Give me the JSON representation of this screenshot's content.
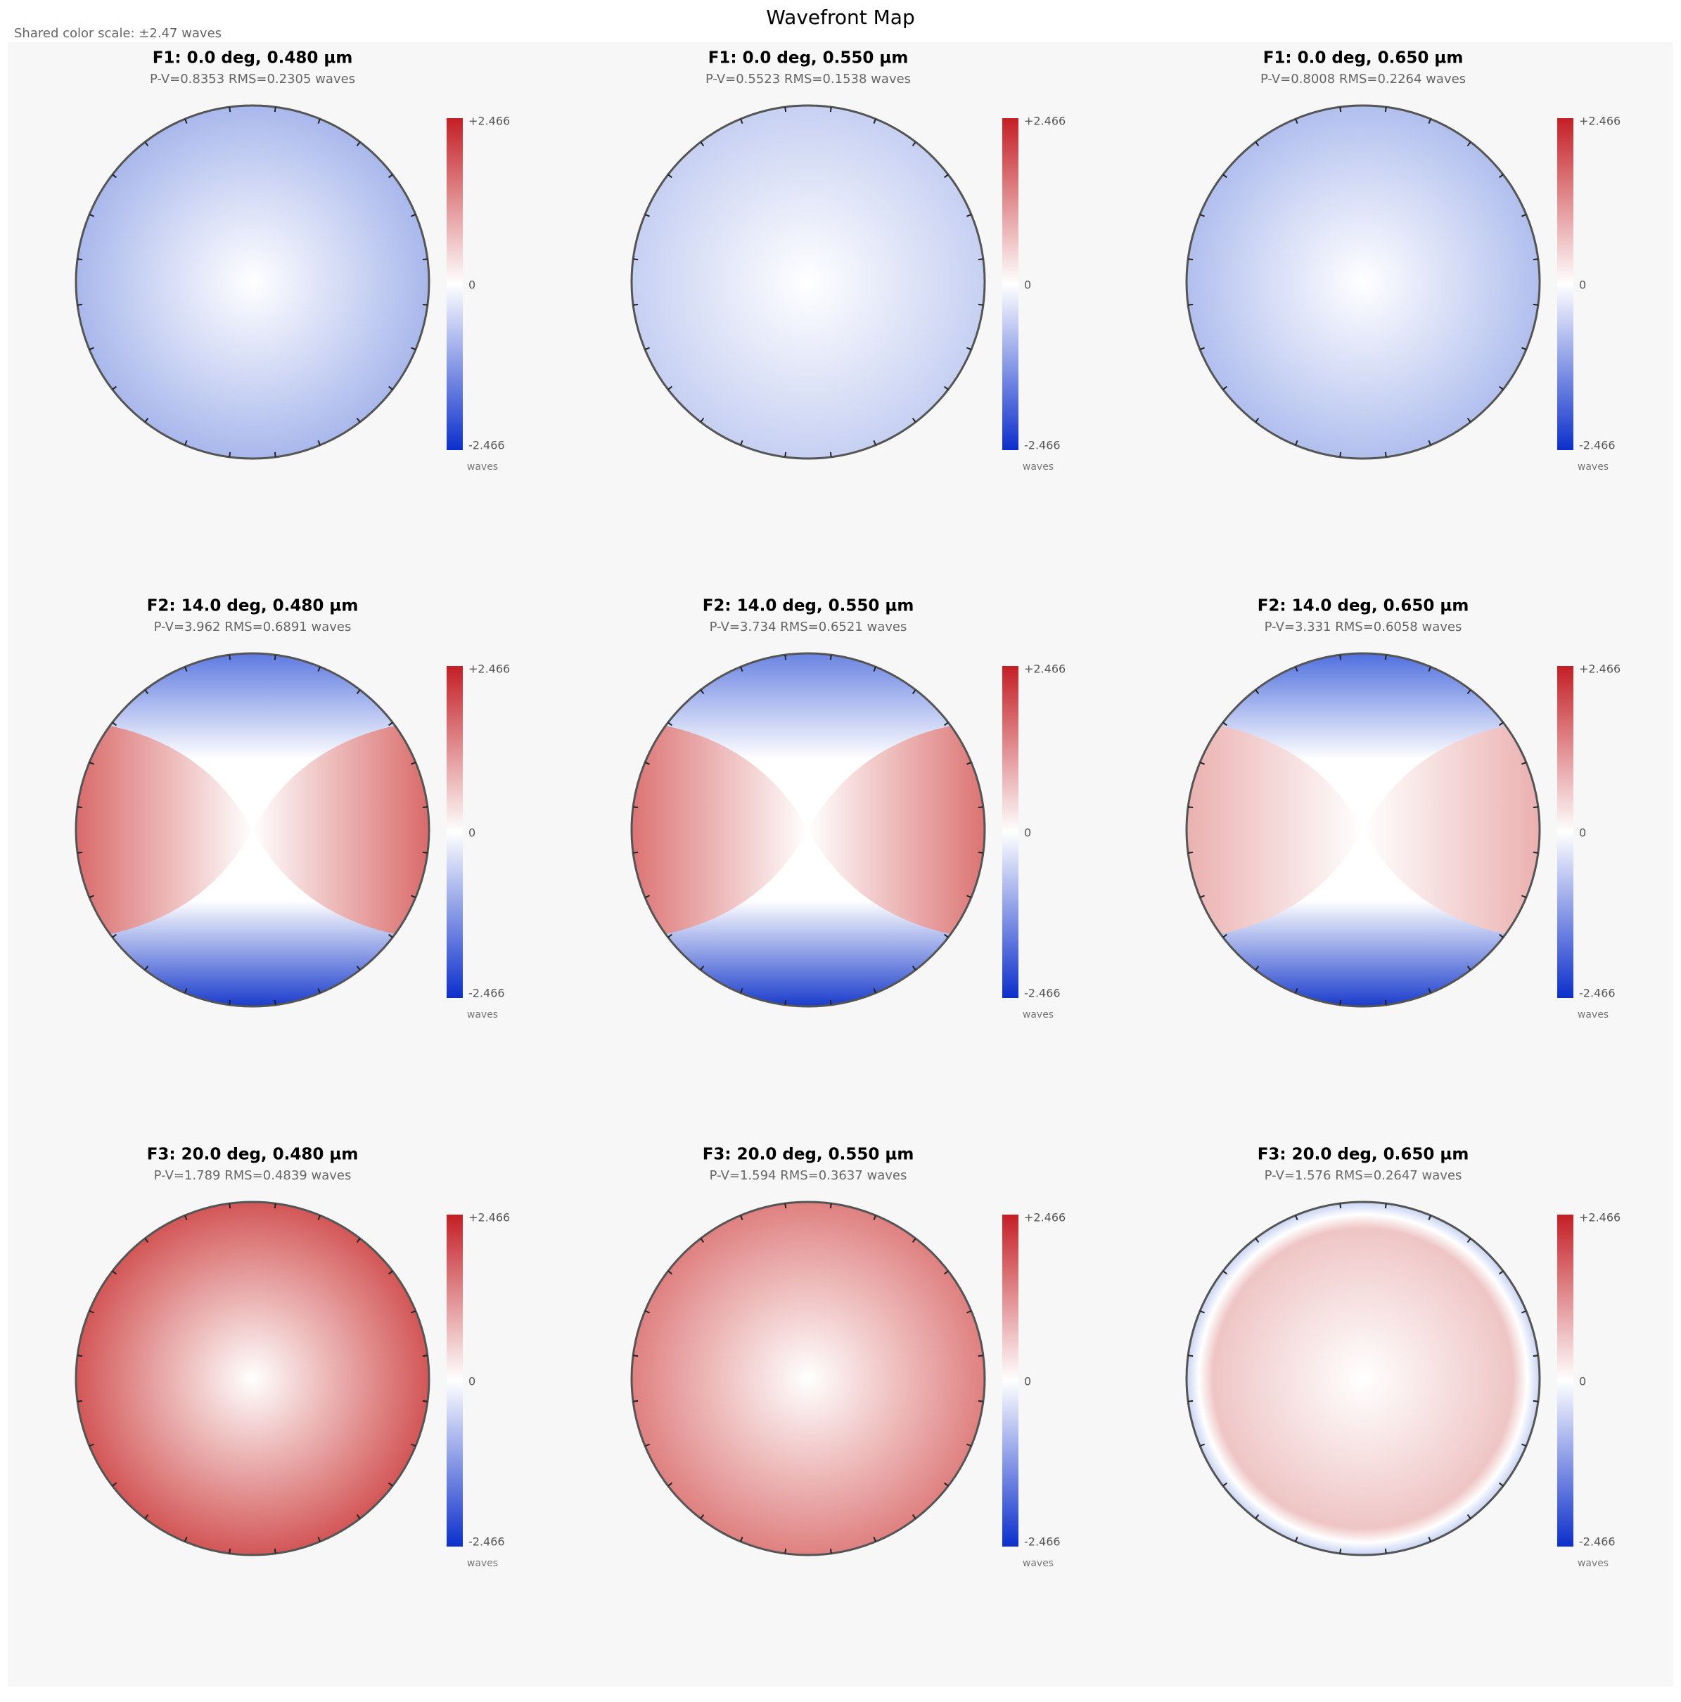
{
  "header": {
    "title": "Wavefront Map",
    "subtitle": "Shared color scale: ±2.47 waves"
  },
  "panels": [
    {
      "title": "F1: 0.0 deg, 0.480 µm",
      "stats": "P-V=0.8353 RMS=0.2305 waves",
      "colorbar": {
        "max": "+2.466",
        "mid": "0",
        "min": "-2.466",
        "unit": "waves"
      }
    },
    {
      "title": "F1: 0.0 deg, 0.550 µm",
      "stats": "P-V=0.5523 RMS=0.1538 waves",
      "colorbar": {
        "max": "+2.466",
        "mid": "0",
        "min": "-2.466",
        "unit": "waves"
      }
    },
    {
      "title": "F1: 0.0 deg, 0.650 µm",
      "stats": "P-V=0.8008 RMS=0.2264 waves",
      "colorbar": {
        "max": "+2.466",
        "mid": "0",
        "min": "-2.466",
        "unit": "waves"
      }
    },
    {
      "title": "F2: 14.0 deg, 0.480 µm",
      "stats": "P-V=3.962 RMS=0.6891 waves",
      "colorbar": {
        "max": "+2.466",
        "mid": "0",
        "min": "-2.466",
        "unit": "waves"
      }
    },
    {
      "title": "F2: 14.0 deg, 0.550 µm",
      "stats": "P-V=3.734 RMS=0.6521 waves",
      "colorbar": {
        "max": "+2.466",
        "mid": "0",
        "min": "-2.466",
        "unit": "waves"
      }
    },
    {
      "title": "F2: 14.0 deg, 0.650 µm",
      "stats": "P-V=3.331 RMS=0.6058 waves",
      "colorbar": {
        "max": "+2.466",
        "mid": "0",
        "min": "-2.466",
        "unit": "waves"
      }
    },
    {
      "title": "F3: 20.0 deg, 0.480 µm",
      "stats": "P-V=1.789 RMS=0.4839 waves",
      "colorbar": {
        "max": "+2.466",
        "mid": "0",
        "min": "-2.466",
        "unit": "waves"
      }
    },
    {
      "title": "F3: 20.0 deg, 0.550 µm",
      "stats": "P-V=1.594 RMS=0.3637 waves",
      "colorbar": {
        "max": "+2.466",
        "mid": "0",
        "min": "-2.466",
        "unit": "waves"
      }
    },
    {
      "title": "F3: 20.0 deg, 0.650 µm",
      "stats": "P-V=1.576 RMS=0.2647 waves",
      "colorbar": {
        "max": "+2.466",
        "mid": "0",
        "min": "-2.466",
        "unit": "waves"
      }
    }
  ]
}
